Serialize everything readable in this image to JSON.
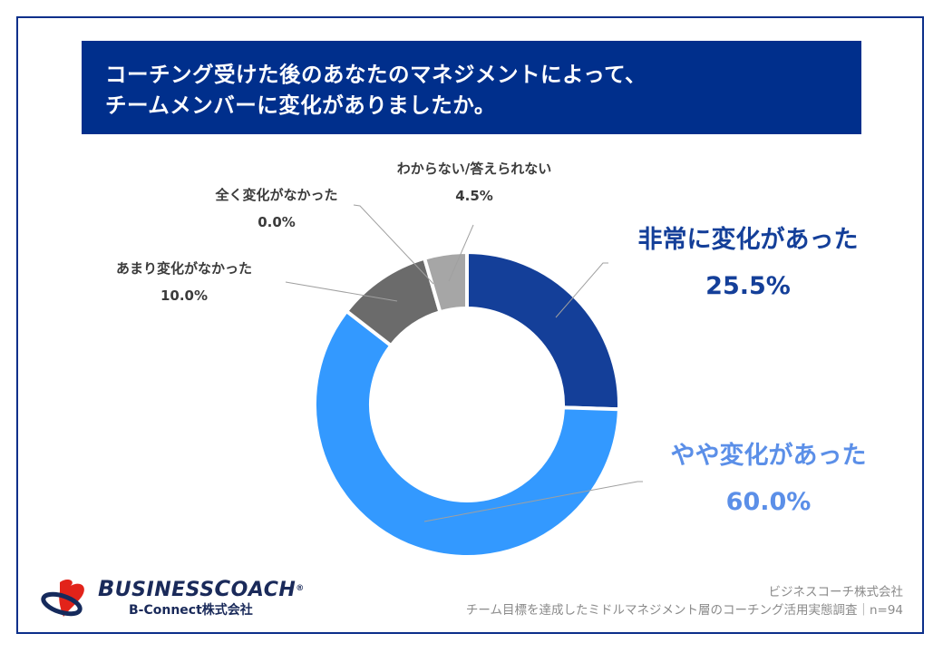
{
  "header": {
    "title_line1": "コーチング受けた後のあなたのマネジメントによって、",
    "title_line2": "チームメンバーに変化がありましたか。"
  },
  "chart_data": {
    "type": "pie",
    "variant": "donut",
    "title": "コーチング受けた後のあなたのマネジメントによって、チームメンバーに変化がありましたか。",
    "categories": [
      "非常に変化があった",
      "やや変化があった",
      "あまり変化がなかった",
      "全く変化がなかった",
      "わからない/答えられない"
    ],
    "values": [
      25.5,
      60.0,
      10.0,
      0.0,
      4.5
    ],
    "unit": "%",
    "colors": [
      "#143f99",
      "#3399ff",
      "#6b6b6b",
      "#8c8c8c",
      "#a6a6a6"
    ],
    "sample_size": 94,
    "legend": "none (data labels with leader lines)"
  },
  "labels": {
    "very": {
      "name": "非常に変化があった",
      "pct": "25.5%",
      "color": "#143f99"
    },
    "some": {
      "name": "やや変化があった",
      "pct": "60.0%",
      "color": "#5b8fe8"
    },
    "little": {
      "name": "あまり変化がなかった",
      "pct": "10.0%"
    },
    "none": {
      "name": "全く変化がなかった",
      "pct": "0.0%"
    },
    "unknown": {
      "name": "わからない/答えられない",
      "pct": "4.5%"
    }
  },
  "logo": {
    "brand_b": "B",
    "brand_usiness": "USINESS",
    "brand_c": "C",
    "brand_oach": "OACH",
    "registered": "®",
    "subtitle": "B-Connect株式会社"
  },
  "source": {
    "company": "ビジネスコーチ株式会社",
    "survey": "チーム目標を達成したミドルマネジメント層のコーチング活用実態調査｜n=94"
  }
}
